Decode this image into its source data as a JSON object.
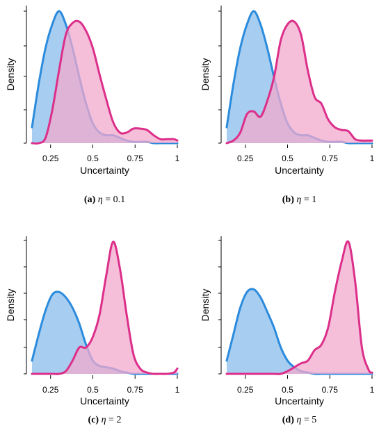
{
  "colors": {
    "blue_line": "#2b8bdc",
    "blue_fill": "#a7cdf0",
    "pink_line": "#dc2f8a",
    "pink_fill": "#f2a9cd"
  },
  "chart_data": [
    {
      "type": "area",
      "caption": {
        "letter": "(a)",
        "symbol": "η",
        "relation": "=",
        "value": "0.1"
      },
      "xlabel": "Uncertainty",
      "ylabel": "Density",
      "xticks": [
        "0.25",
        "0.5",
        "0.75",
        "1"
      ],
      "xlim": [
        0.14,
        1.0
      ],
      "ylim": [
        0,
        1.0
      ],
      "grid": false,
      "x": [
        0.14,
        0.18,
        0.22,
        0.26,
        0.3,
        0.34,
        0.38,
        0.42,
        0.46,
        0.5,
        0.54,
        0.58,
        0.62,
        0.66,
        0.7,
        0.74,
        0.78,
        0.82,
        0.86,
        0.9,
        0.94,
        0.98,
        1.0
      ],
      "series": [
        {
          "values": [
            0.12,
            0.45,
            0.72,
            0.9,
            1.0,
            0.9,
            0.72,
            0.5,
            0.3,
            0.15,
            0.08,
            0.06,
            0.06,
            0.04,
            0.02,
            0.01,
            0.01,
            0.01,
            0.0,
            0.0,
            0.0,
            0.0,
            0.0
          ]
        },
        {
          "values": [
            0.0,
            0.0,
            0.04,
            0.25,
            0.55,
            0.82,
            0.91,
            0.92,
            0.85,
            0.72,
            0.52,
            0.33,
            0.16,
            0.08,
            0.08,
            0.11,
            0.11,
            0.1,
            0.06,
            0.03,
            0.03,
            0.03,
            0.02
          ]
        }
      ]
    },
    {
      "type": "area",
      "caption": {
        "letter": "(b)",
        "symbol": "η",
        "relation": "=",
        "value": "1"
      },
      "xlabel": "Uncertainty",
      "ylabel": "Density",
      "xticks": [
        "0.25",
        "0.5",
        "0.75",
        "1"
      ],
      "xlim": [
        0.14,
        1.0
      ],
      "ylim": [
        0,
        1.0
      ],
      "grid": false,
      "x": [
        0.14,
        0.18,
        0.22,
        0.26,
        0.3,
        0.34,
        0.38,
        0.42,
        0.46,
        0.5,
        0.54,
        0.58,
        0.62,
        0.66,
        0.7,
        0.74,
        0.78,
        0.82,
        0.86,
        0.9,
        0.94,
        0.98,
        1.0
      ],
      "series": [
        {
          "values": [
            0.12,
            0.45,
            0.72,
            0.9,
            1.0,
            0.9,
            0.72,
            0.5,
            0.3,
            0.15,
            0.08,
            0.06,
            0.06,
            0.04,
            0.02,
            0.01,
            0.01,
            0.01,
            0.0,
            0.0,
            0.0,
            0.0,
            0.0
          ]
        },
        {
          "values": [
            0.0,
            0.02,
            0.08,
            0.22,
            0.24,
            0.2,
            0.32,
            0.5,
            0.78,
            0.9,
            0.92,
            0.82,
            0.55,
            0.35,
            0.3,
            0.18,
            0.12,
            0.1,
            0.09,
            0.03,
            0.02,
            0.02,
            0.02
          ]
        }
      ]
    },
    {
      "type": "area",
      "caption": {
        "letter": "(c)",
        "symbol": "η",
        "relation": "=",
        "value": "2"
      },
      "xlabel": "Uncertainty",
      "ylabel": "Density",
      "xticks": [
        "0.25",
        "0.5",
        "0.75",
        "1"
      ],
      "xlim": [
        0.14,
        1.0
      ],
      "ylim": [
        0,
        1.0
      ],
      "grid": false,
      "x": [
        0.14,
        0.18,
        0.22,
        0.26,
        0.3,
        0.34,
        0.38,
        0.42,
        0.46,
        0.5,
        0.54,
        0.58,
        0.62,
        0.66,
        0.7,
        0.74,
        0.78,
        0.82,
        0.86,
        0.9,
        0.94,
        0.98,
        1.0
      ],
      "series": [
        {
          "values": [
            0.1,
            0.3,
            0.48,
            0.6,
            0.62,
            0.58,
            0.5,
            0.38,
            0.22,
            0.1,
            0.06,
            0.05,
            0.04,
            0.02,
            0.01,
            0.0,
            0.0,
            0.0,
            0.0,
            0.0,
            0.0,
            0.0,
            0.0
          ]
        },
        {
          "values": [
            0.0,
            0.0,
            0.0,
            0.0,
            0.0,
            0.02,
            0.1,
            0.2,
            0.2,
            0.28,
            0.45,
            0.75,
            1.0,
            0.8,
            0.45,
            0.15,
            0.04,
            0.01,
            0.0,
            0.0,
            0.0,
            0.01,
            0.04
          ]
        }
      ]
    },
    {
      "type": "area",
      "caption": {
        "letter": "(d)",
        "symbol": "η",
        "relation": "=",
        "value": "5"
      },
      "xlabel": "Uncertainty",
      "ylabel": "Density",
      "xticks": [
        "0.25",
        "0.5",
        "0.75",
        "1"
      ],
      "xlim": [
        0.14,
        1.0
      ],
      "ylim": [
        0,
        1.0
      ],
      "grid": false,
      "x": [
        0.14,
        0.18,
        0.22,
        0.26,
        0.3,
        0.34,
        0.38,
        0.42,
        0.46,
        0.5,
        0.54,
        0.58,
        0.62,
        0.66,
        0.7,
        0.74,
        0.78,
        0.82,
        0.86,
        0.9,
        0.94,
        0.98,
        1.0
      ],
      "series": [
        {
          "values": [
            0.1,
            0.3,
            0.5,
            0.62,
            0.64,
            0.58,
            0.47,
            0.35,
            0.2,
            0.1,
            0.05,
            0.02,
            0.01,
            0.0,
            0.0,
            0.0,
            0.0,
            0.0,
            0.0,
            0.0,
            0.0,
            0.0,
            0.0
          ]
        },
        {
          "values": [
            0.0,
            0.0,
            0.0,
            0.0,
            0.0,
            0.0,
            0.0,
            0.0,
            0.0,
            0.02,
            0.05,
            0.08,
            0.1,
            0.18,
            0.22,
            0.35,
            0.62,
            0.85,
            1.0,
            0.7,
            0.2,
            0.03,
            0.01
          ]
        }
      ]
    }
  ]
}
